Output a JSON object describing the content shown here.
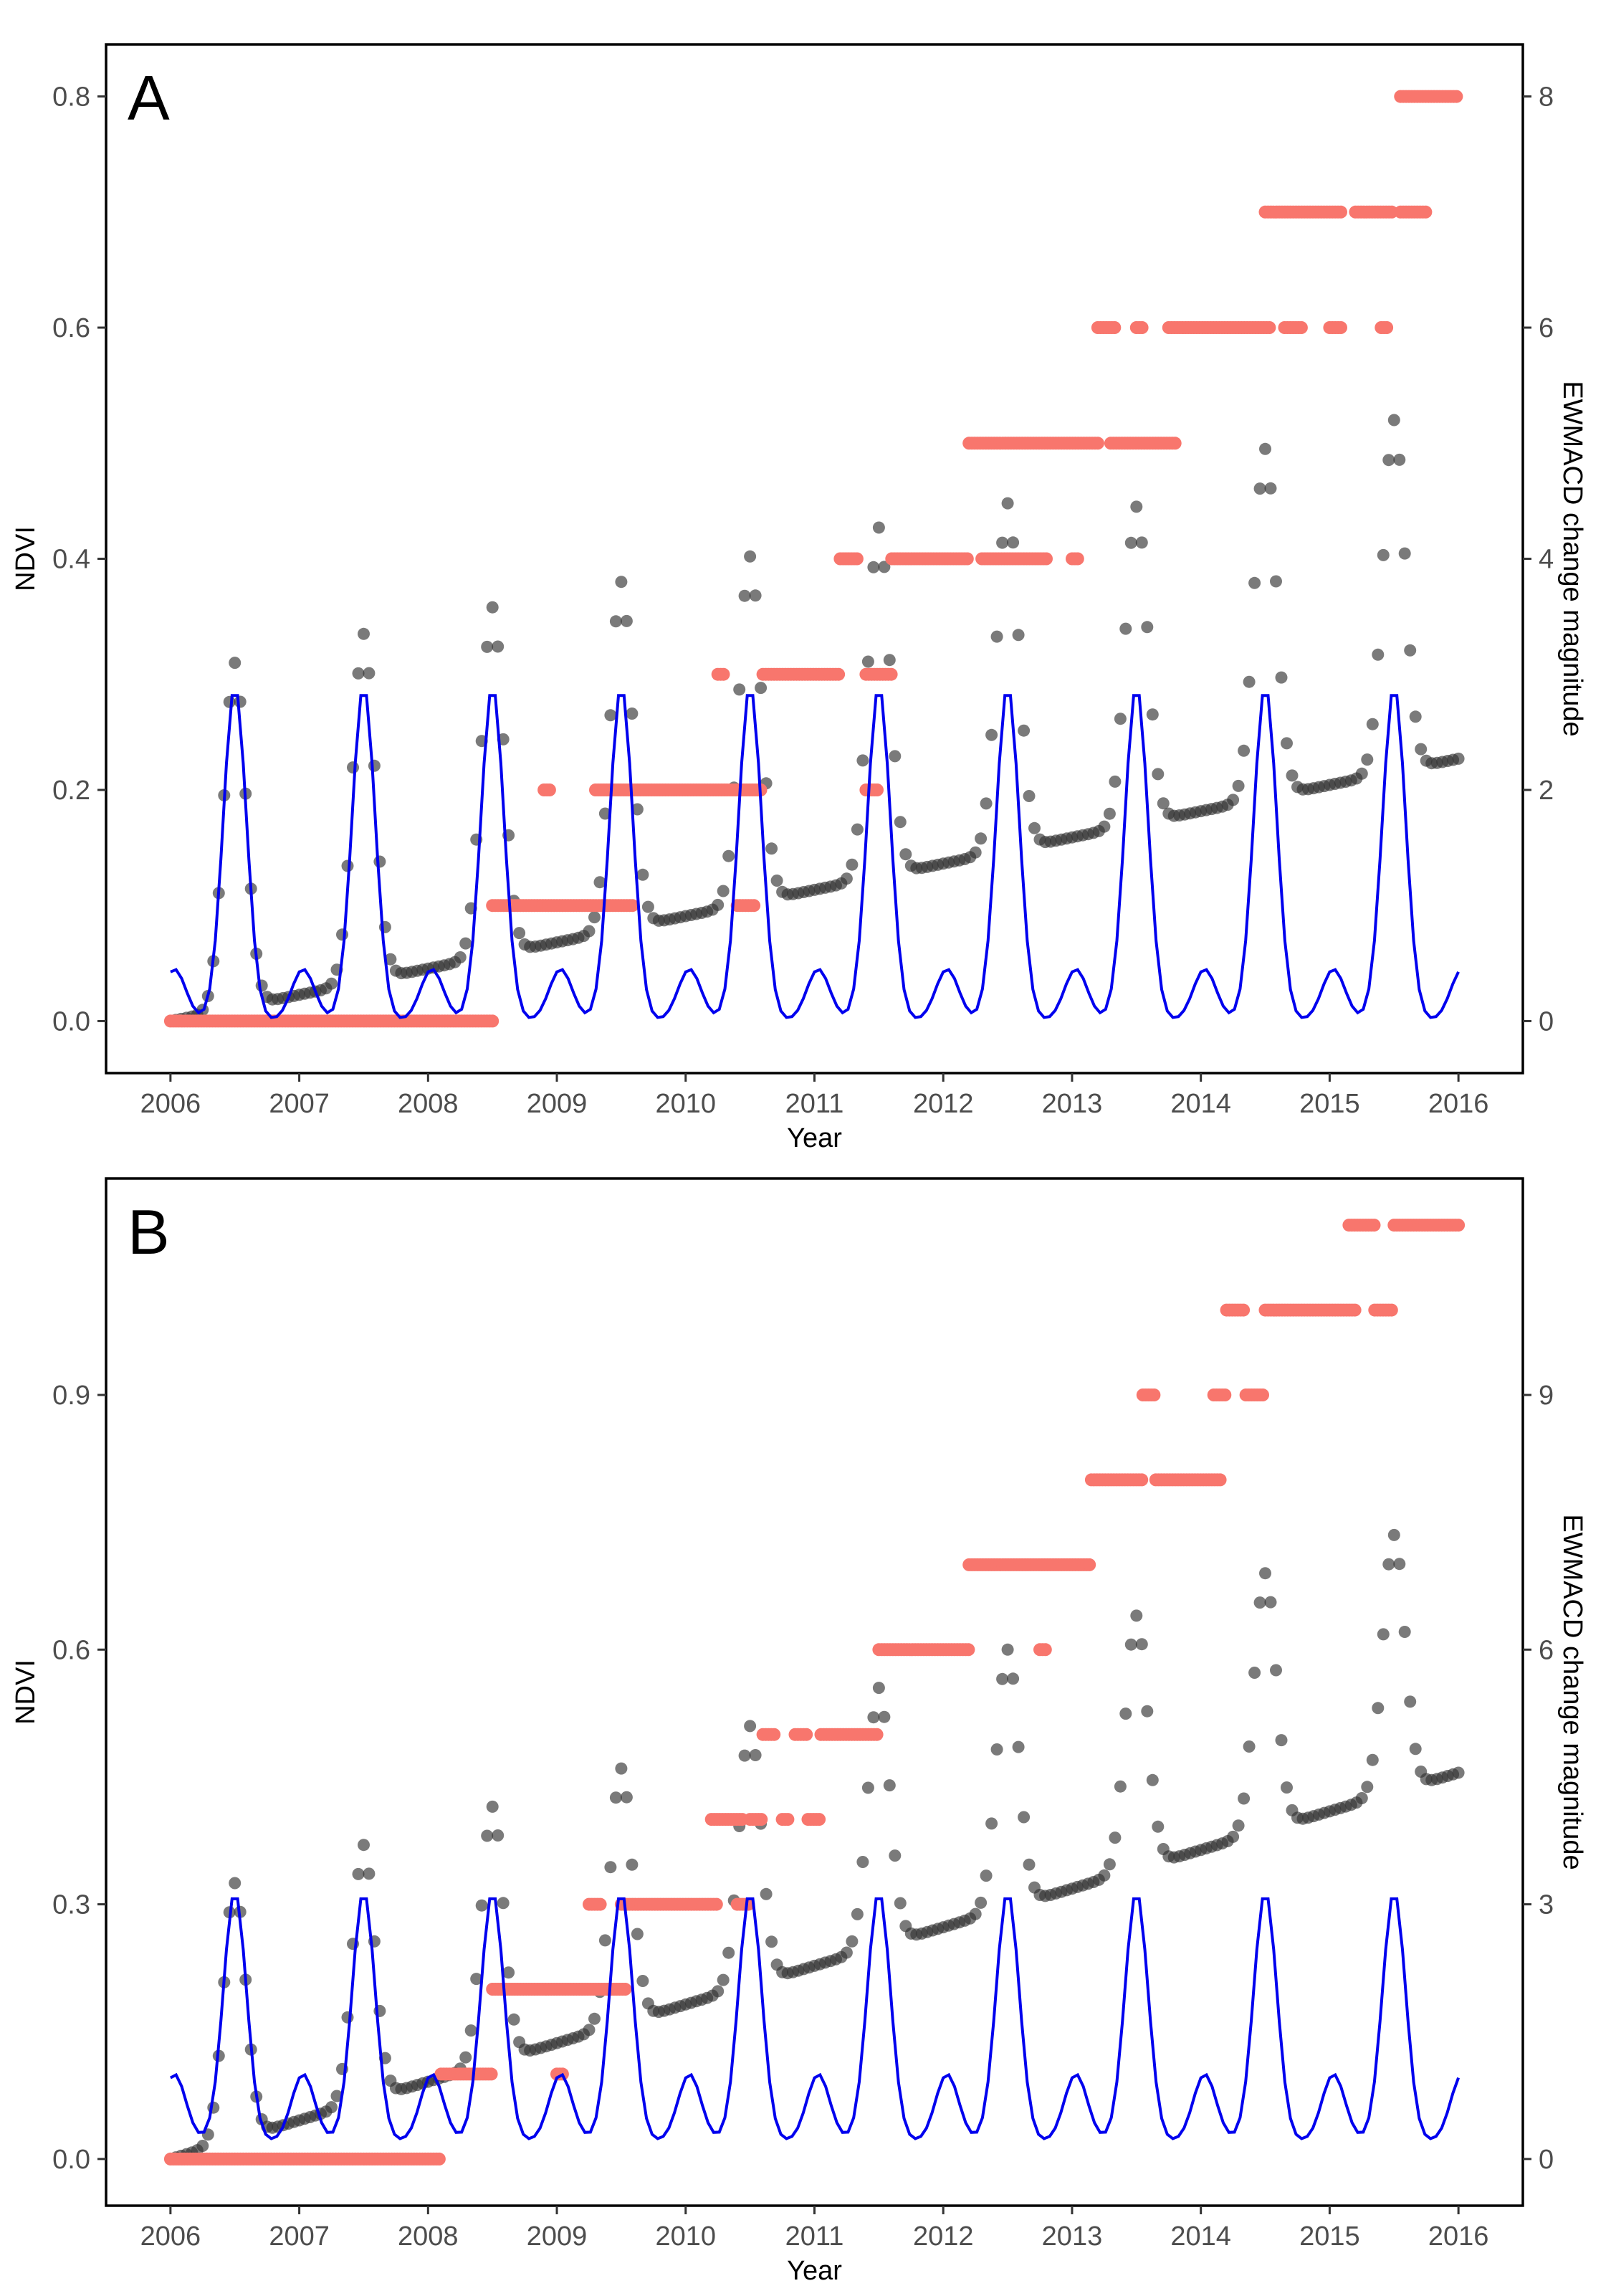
{
  "colors": {
    "ndvi_points": "#333333",
    "fitted_line": "#0000ee",
    "change_points": "#f8766d"
  },
  "chart_data": [
    {
      "type": "scatter",
      "panel_label": "A",
      "xlabel": "Year",
      "ylabel": "NDVI",
      "y2label": "EWMACD change magnitude",
      "xlim": [
        2005.5,
        2016.5
      ],
      "ylim": [
        -0.045,
        0.845
      ],
      "y2lim": [
        -0.45,
        8.45
      ],
      "xticks": [
        2006,
        2007,
        2008,
        2009,
        2010,
        2011,
        2012,
        2013,
        2014,
        2015,
        2016
      ],
      "yticks": [
        0.0,
        0.2,
        0.4,
        0.6,
        0.8
      ],
      "ytick_labels": [
        "0.0",
        "0.2",
        "0.4",
        "0.6",
        "0.8"
      ],
      "y2ticks": [
        0,
        2,
        4,
        6,
        8
      ],
      "y2tick_labels": [
        "0",
        "2",
        "4",
        "6",
        "8"
      ],
      "ndvi": {
        "peak_years": [
          2006.5,
          2007.5,
          2008.5,
          2009.5,
          2010.5,
          2011.5,
          2012.5,
          2013.5,
          2014.5,
          2015.5
        ],
        "peak_values": [
          0.31,
          0.335,
          0.358,
          0.38,
          0.402,
          0.427,
          0.448,
          0.445,
          0.495,
          0.52
        ],
        "base_start": 0.0,
        "base_end": 0.227
      },
      "fitted": {
        "peak": 0.29,
        "low": 0.0,
        "midyear_bump": 0.045
      },
      "change": {
        "levels": [
          {
            "value": 0,
            "from": 2006.0,
            "to": 2008.5
          },
          {
            "value": 1,
            "from": 2008.5,
            "to": 2009.6
          },
          {
            "value": 1,
            "from": 2010.4,
            "to": 2010.55
          },
          {
            "value": 2,
            "from": 2008.9,
            "to": 2008.95
          },
          {
            "value": 2,
            "from": 2009.3,
            "to": 2010.6
          },
          {
            "value": 2,
            "from": 2011.4,
            "to": 2011.5
          },
          {
            "value": 3,
            "from": 2010.25,
            "to": 2010.3
          },
          {
            "value": 3,
            "from": 2010.6,
            "to": 2011.2
          },
          {
            "value": 3,
            "from": 2011.4,
            "to": 2011.6
          },
          {
            "value": 4,
            "from": 2011.2,
            "to": 2011.35
          },
          {
            "value": 4,
            "from": 2011.6,
            "to": 2012.2
          },
          {
            "value": 4,
            "from": 2012.3,
            "to": 2012.8
          },
          {
            "value": 4,
            "from": 2013.0,
            "to": 2013.05
          },
          {
            "value": 5,
            "from": 2012.2,
            "to": 2013.2
          },
          {
            "value": 5,
            "from": 2013.3,
            "to": 2013.8
          },
          {
            "value": 6,
            "from": 2013.2,
            "to": 2013.35
          },
          {
            "value": 6,
            "from": 2013.5,
            "to": 2013.55
          },
          {
            "value": 6,
            "from": 2013.75,
            "to": 2014.55
          },
          {
            "value": 6,
            "from": 2014.65,
            "to": 2014.8
          },
          {
            "value": 6,
            "from": 2015.0,
            "to": 2015.1
          },
          {
            "value": 6,
            "from": 2015.4,
            "to": 2015.45
          },
          {
            "value": 7,
            "from": 2014.5,
            "to": 2015.1
          },
          {
            "value": 7,
            "from": 2015.2,
            "to": 2015.5
          },
          {
            "value": 7,
            "from": 2015.55,
            "to": 2015.75
          },
          {
            "value": 8,
            "from": 2015.55,
            "to": 2016.0
          }
        ]
      }
    },
    {
      "type": "scatter",
      "panel_label": "B",
      "xlabel": "Year",
      "ylabel": "NDVI",
      "y2label": "EWMACD change magnitude",
      "xlim": [
        2005.5,
        2016.5
      ],
      "ylim": [
        -0.055,
        1.155
      ],
      "y2lim": [
        -0.55,
        11.55
      ],
      "xticks": [
        2006,
        2007,
        2008,
        2009,
        2010,
        2011,
        2012,
        2013,
        2014,
        2015,
        2016
      ],
      "yticks": [
        0.0,
        0.3,
        0.6,
        0.9
      ],
      "ytick_labels": [
        "0.0",
        "0.3",
        "0.6",
        "0.9"
      ],
      "y2ticks": [
        0,
        3,
        6,
        9
      ],
      "y2tick_labels": [
        "0",
        "3",
        "6",
        "9"
      ],
      "ndvi": {
        "peak_years": [
          2006.5,
          2007.5,
          2008.5,
          2009.5,
          2010.5,
          2011.5,
          2012.5,
          2013.5,
          2014.5,
          2015.5
        ],
        "peak_values": [
          0.325,
          0.37,
          0.415,
          0.46,
          0.51,
          0.555,
          0.6,
          0.64,
          0.69,
          0.735
        ],
        "base_start": 0.0,
        "base_end": 0.455
      },
      "fitted": {
        "peak": 0.315,
        "low": 0.02,
        "midyear_bump": 0.08
      },
      "change": {
        "levels": [
          {
            "value": 0,
            "from": 2006.0,
            "to": 2008.1
          },
          {
            "value": 1,
            "from": 2008.1,
            "to": 2008.5
          },
          {
            "value": 1,
            "from": 2009.0,
            "to": 2009.05
          },
          {
            "value": 2,
            "from": 2008.5,
            "to": 2009.4
          },
          {
            "value": 2,
            "from": 2009.4,
            "to": 2009.55
          },
          {
            "value": 3,
            "from": 2009.25,
            "to": 2009.35
          },
          {
            "value": 3,
            "from": 2009.5,
            "to": 2010.25
          },
          {
            "value": 3,
            "from": 2010.4,
            "to": 2010.5
          },
          {
            "value": 4,
            "from": 2010.2,
            "to": 2010.45
          },
          {
            "value": 4,
            "from": 2010.5,
            "to": 2010.6
          },
          {
            "value": 4,
            "from": 2010.75,
            "to": 2010.8
          },
          {
            "value": 4,
            "from": 2010.95,
            "to": 2011.05
          },
          {
            "value": 5,
            "from": 2010.6,
            "to": 2010.7
          },
          {
            "value": 5,
            "from": 2010.85,
            "to": 2010.95
          },
          {
            "value": 5,
            "from": 2011.05,
            "to": 2011.5
          },
          {
            "value": 6,
            "from": 2011.5,
            "to": 2012.2
          },
          {
            "value": 6,
            "from": 2012.75,
            "to": 2012.8
          },
          {
            "value": 7,
            "from": 2012.2,
            "to": 2013.15
          },
          {
            "value": 8,
            "from": 2013.15,
            "to": 2013.55
          },
          {
            "value": 8,
            "from": 2013.65,
            "to": 2014.15
          },
          {
            "value": 9,
            "from": 2013.55,
            "to": 2013.65
          },
          {
            "value": 9,
            "from": 2014.1,
            "to": 2014.2
          },
          {
            "value": 9,
            "from": 2014.35,
            "to": 2014.5
          },
          {
            "value": 10,
            "from": 2014.2,
            "to": 2014.35
          },
          {
            "value": 10,
            "from": 2014.5,
            "to": 2015.2
          },
          {
            "value": 10,
            "from": 2015.35,
            "to": 2015.5
          },
          {
            "value": 11,
            "from": 2015.15,
            "to": 2015.35
          },
          {
            "value": 11,
            "from": 2015.5,
            "to": 2016.0
          }
        ]
      }
    }
  ]
}
